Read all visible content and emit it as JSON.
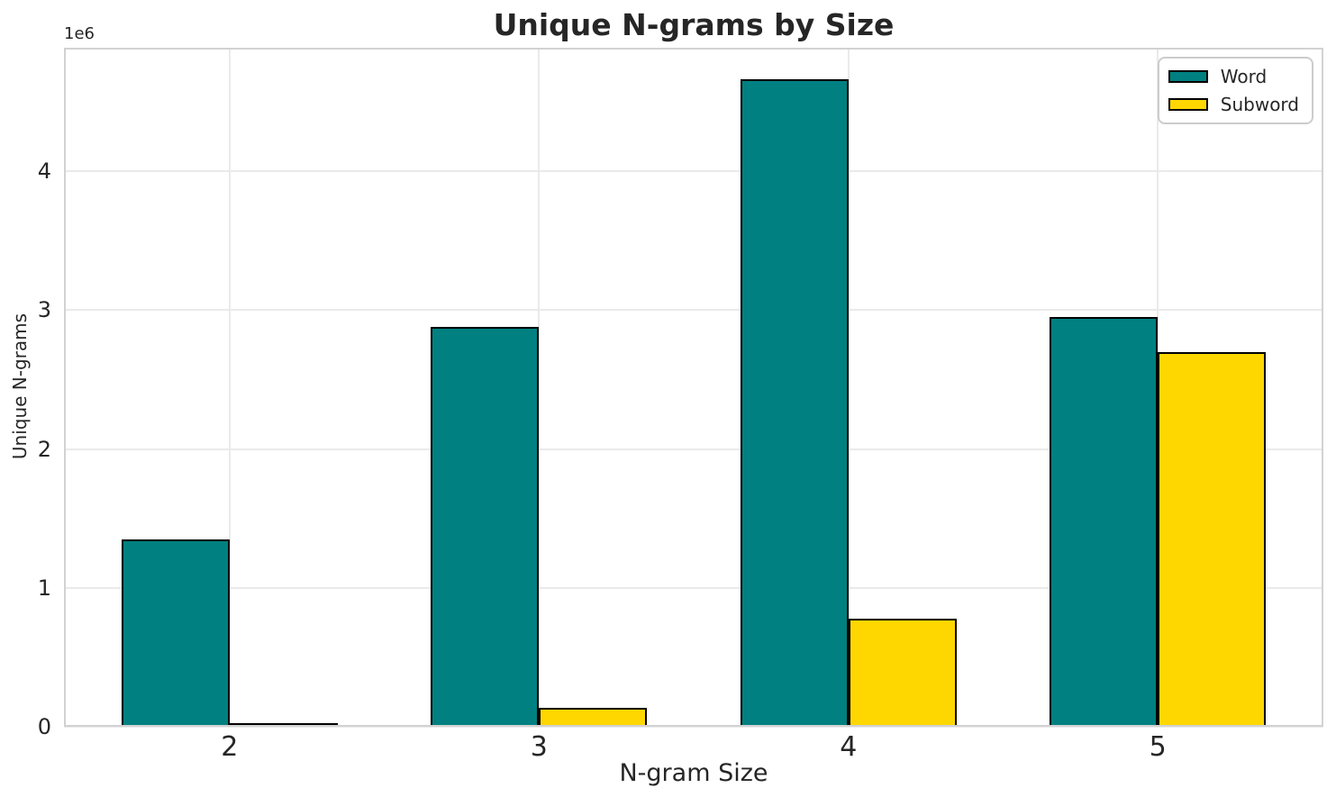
{
  "chart_data": {
    "type": "bar",
    "title": "Unique N-grams by Size",
    "xlabel": "N-gram Size",
    "ylabel": "Unique N-grams",
    "y_offset_text": "1e6",
    "categories": [
      "2",
      "3",
      "4",
      "5"
    ],
    "x": [
      2,
      3,
      4,
      5
    ],
    "series": [
      {
        "name": "Word",
        "color": "#008080",
        "values": [
          1350000,
          2880000,
          4660000,
          2950000
        ]
      },
      {
        "name": "Subword",
        "color": "#FFD700",
        "values": [
          25000,
          135000,
          780000,
          2700000
        ]
      }
    ],
    "bar_edge_color": "#000000",
    "bar_width_units": 0.35,
    "xlim": [
      1.465,
      5.535
    ],
    "ylim": [
      0,
      4890000
    ],
    "yticks": [
      0,
      1000000,
      2000000,
      3000000,
      4000000
    ],
    "ytick_labels": [
      "0",
      "1",
      "2",
      "3",
      "4"
    ],
    "grid": true,
    "legend_position": "upper right"
  }
}
